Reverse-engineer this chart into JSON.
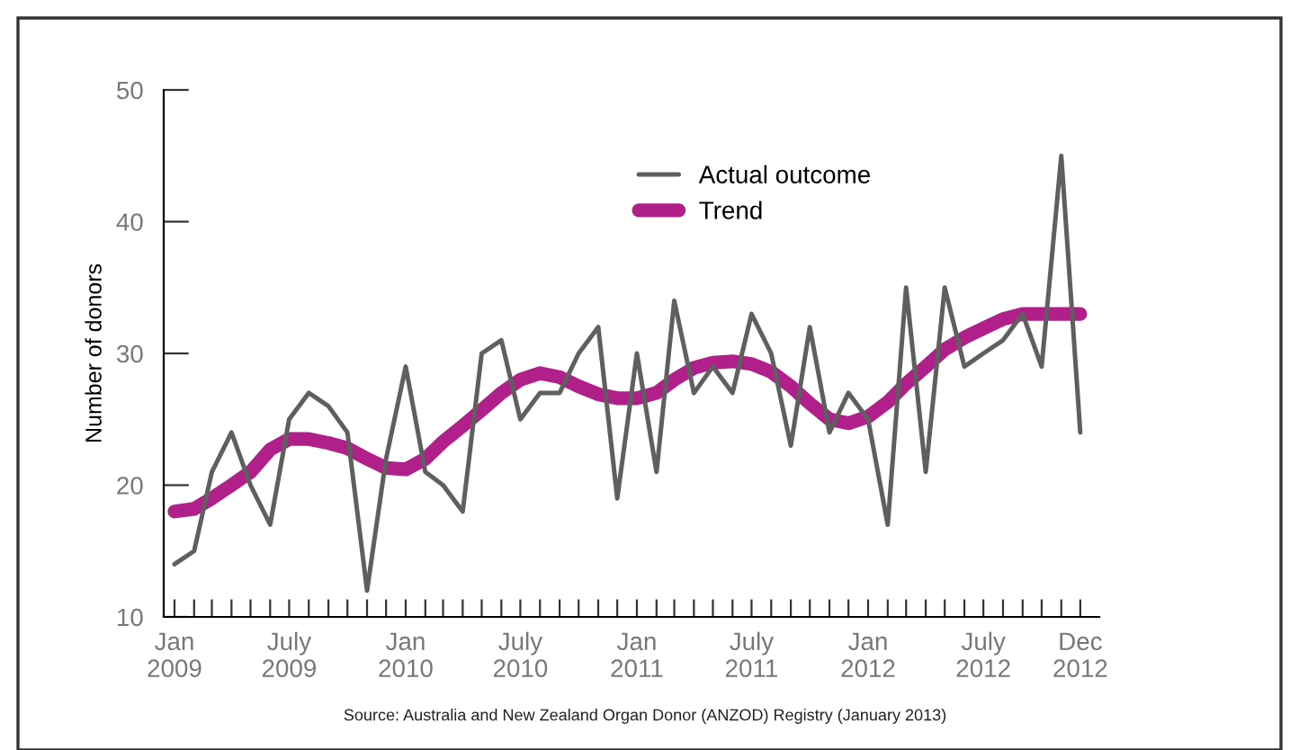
{
  "chart_data": {
    "type": "line",
    "ylabel": "Number of donors",
    "x": [
      "2009-01",
      "2009-02",
      "2009-03",
      "2009-04",
      "2009-05",
      "2009-06",
      "2009-07",
      "2009-08",
      "2009-09",
      "2009-10",
      "2009-11",
      "2009-12",
      "2010-01",
      "2010-02",
      "2010-03",
      "2010-04",
      "2010-05",
      "2010-06",
      "2010-07",
      "2010-08",
      "2010-09",
      "2010-10",
      "2010-11",
      "2010-12",
      "2011-01",
      "2011-02",
      "2011-03",
      "2011-04",
      "2011-05",
      "2011-06",
      "2011-07",
      "2011-08",
      "2011-09",
      "2011-10",
      "2011-11",
      "2011-12",
      "2012-01",
      "2012-02",
      "2012-03",
      "2012-04",
      "2012-05",
      "2012-06",
      "2012-07",
      "2012-08",
      "2012-09",
      "2012-10",
      "2012-11",
      "2012-12"
    ],
    "series": [
      {
        "name": "Actual outcome",
        "color": "#5f5f5f",
        "values": [
          14,
          15,
          21,
          24,
          20,
          17,
          25,
          27,
          26,
          24,
          12,
          22,
          29,
          21,
          20,
          18,
          30,
          31,
          25,
          27,
          27,
          30,
          32,
          19,
          30,
          21,
          34,
          27,
          29,
          27,
          33,
          30,
          23,
          32,
          24,
          27,
          25,
          17,
          35,
          21,
          35,
          29,
          30,
          31,
          33,
          29,
          45,
          24
        ]
      },
      {
        "name": "Trend",
        "color": "#b01f8a",
        "values": [
          18,
          18.2,
          19,
          20,
          21,
          22.7,
          23.5,
          23.5,
          23.2,
          22.8,
          22,
          21.3,
          21.2,
          22,
          23.3,
          24.5,
          25.7,
          27,
          28,
          28.5,
          28.2,
          27.5,
          26.9,
          26.6,
          26.6,
          27,
          28,
          28.9,
          29.3,
          29.4,
          29.2,
          28.6,
          27.5,
          26.2,
          25,
          24.7,
          25.2,
          26.3,
          27.7,
          29,
          30.3,
          31.2,
          31.9,
          32.6,
          33,
          33,
          33,
          33
        ]
      }
    ],
    "xlim": [
      "2008-12-15",
      "2012-12-31"
    ],
    "xticks": [
      {
        "value": "2009-01",
        "label": "Jan\n2009"
      },
      {
        "value": "2009-07",
        "label": "July\n2009"
      },
      {
        "value": "2010-01",
        "label": "Jan\n2010"
      },
      {
        "value": "2010-07",
        "label": "July\n2010"
      },
      {
        "value": "2011-01",
        "label": "Jan\n2011"
      },
      {
        "value": "2011-07",
        "label": "July\n2011"
      },
      {
        "value": "2012-01",
        "label": "Jan\n2012"
      },
      {
        "value": "2012-07",
        "label": "July\n2012"
      },
      {
        "value": "2012-12",
        "label": "Dec\n2012"
      },
      {
        "value": "2009-02",
        "label": null
      },
      {
        "value": "2009-03",
        "label": null
      },
      {
        "value": "2009-04",
        "label": null
      },
      {
        "value": "2009-05",
        "label": null
      },
      {
        "value": "2009-06",
        "label": null
      },
      {
        "value": "2009-08",
        "label": null
      },
      {
        "value": "2009-09",
        "label": null
      },
      {
        "value": "2009-10",
        "label": null
      },
      {
        "value": "2009-11",
        "label": null
      },
      {
        "value": "2009-12",
        "label": null
      },
      {
        "value": "2010-02",
        "label": null
      },
      {
        "value": "2010-03",
        "label": null
      },
      {
        "value": "2010-04",
        "label": null
      },
      {
        "value": "2010-05",
        "label": null
      },
      {
        "value": "2010-06",
        "label": null
      },
      {
        "value": "2010-08",
        "label": null
      },
      {
        "value": "2010-09",
        "label": null
      },
      {
        "value": "2010-10",
        "label": null
      },
      {
        "value": "2010-11",
        "label": null
      },
      {
        "value": "2010-12",
        "label": null
      },
      {
        "value": "2011-02",
        "label": null
      },
      {
        "value": "2011-03",
        "label": null
      },
      {
        "value": "2011-04",
        "label": null
      },
      {
        "value": "2011-05",
        "label": null
      },
      {
        "value": "2011-06",
        "label": null
      },
      {
        "value": "2011-08",
        "label": null
      },
      {
        "value": "2011-09",
        "label": null
      },
      {
        "value": "2011-10",
        "label": null
      },
      {
        "value": "2011-11",
        "label": null
      },
      {
        "value": "2011-12",
        "label": null
      },
      {
        "value": "2012-02",
        "label": null
      },
      {
        "value": "2012-03",
        "label": null
      },
      {
        "value": "2012-04",
        "label": null
      },
      {
        "value": "2012-05",
        "label": null
      },
      {
        "value": "2012-06",
        "label": null
      },
      {
        "value": "2012-08",
        "label": null
      },
      {
        "value": "2012-09",
        "label": null
      },
      {
        "value": "2012-10",
        "label": null
      },
      {
        "value": "2012-11",
        "label": null
      }
    ],
    "ylim": [
      10,
      50
    ],
    "yticks": [
      10,
      20,
      30,
      40,
      50
    ],
    "grid": false,
    "legend": "top right",
    "marker": "none",
    "line_style": "solid",
    "annotations": [
      "Source: Australia and New Zealand Organ Donor (ANZOD) Registry (January 2013)"
    ]
  }
}
